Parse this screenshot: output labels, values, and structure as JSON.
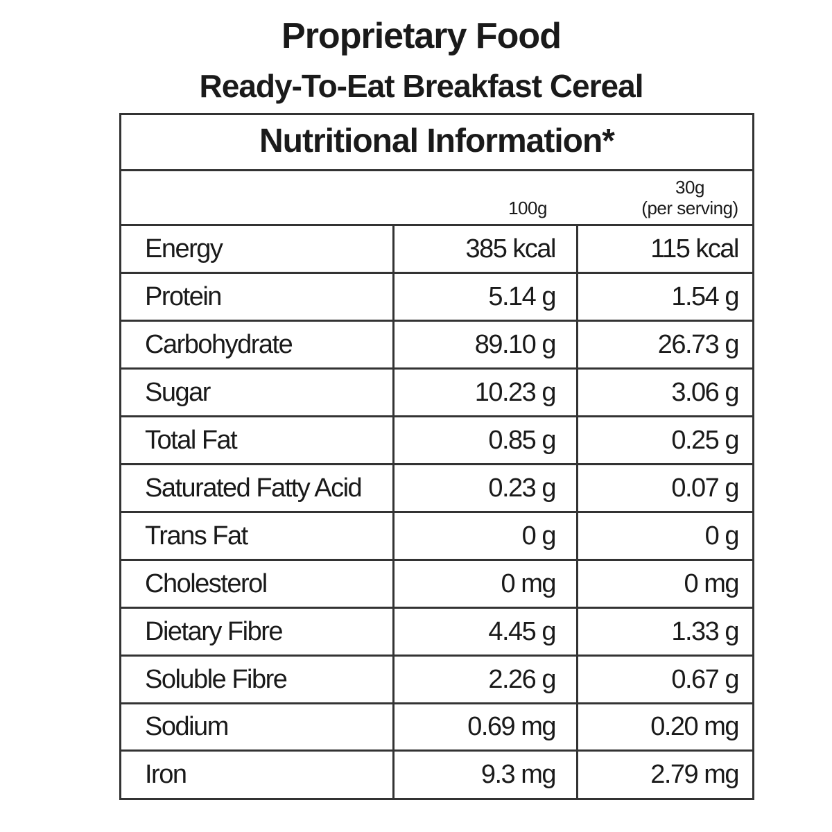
{
  "header": {
    "title": "Proprietary Food",
    "subtitle": "Ready-To-Eat Breakfast Cereal"
  },
  "table": {
    "title": "Nutritional Information*",
    "columns": [
      {
        "lines": [
          "100g"
        ]
      },
      {
        "lines": [
          "30g",
          "(per serving)"
        ]
      }
    ],
    "rows": [
      [
        "Energy",
        "385 kcal",
        "115 kcal"
      ],
      [
        "Protein",
        "5.14 g",
        "1.54 g"
      ],
      [
        "Carbohydrate",
        "89.10 g",
        "26.73 g"
      ],
      [
        "Sugar",
        "10.23 g",
        "3.06 g"
      ],
      [
        "Total Fat",
        "0.85 g",
        "0.25 g"
      ],
      [
        "Saturated Fatty Acid",
        "0.23 g",
        "0.07 g"
      ],
      [
        "Trans Fat",
        "0 g",
        "0 g"
      ],
      [
        "Cholesterol",
        "0 mg",
        "0 mg"
      ],
      [
        "Dietary Fibre",
        "4.45 g",
        "1.33 g"
      ],
      [
        "Soluble Fibre",
        "2.26 g",
        "0.67 g"
      ],
      [
        "Sodium",
        "0.69 mg",
        "0.20 mg"
      ],
      [
        "Iron",
        "9.3 mg",
        "2.79 mg"
      ]
    ]
  }
}
